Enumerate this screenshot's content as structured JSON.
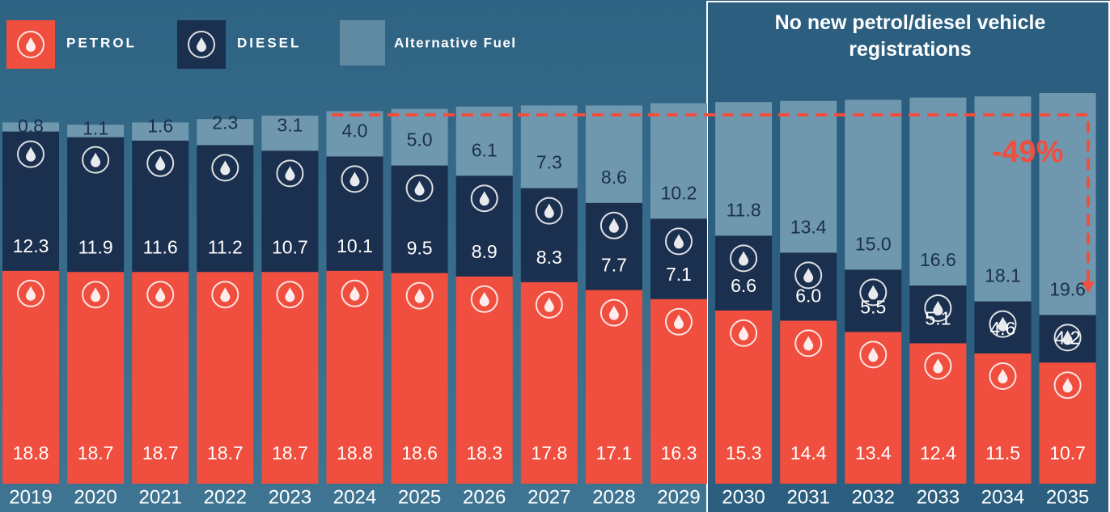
{
  "chart_data": {
    "type": "stacked_bar",
    "categories": [
      "2019",
      "2020",
      "2021",
      "2022",
      "2023",
      "2024",
      "2025",
      "2026",
      "2027",
      "2028",
      "2029",
      "2030",
      "2031",
      "2032",
      "2033",
      "2034",
      "2035"
    ],
    "series": [
      {
        "name": "PETROL",
        "color": "#f04e3e",
        "values": [
          18.8,
          18.7,
          18.7,
          18.7,
          18.7,
          18.8,
          18.6,
          18.3,
          17.8,
          17.1,
          16.3,
          15.3,
          14.4,
          13.4,
          12.4,
          11.5,
          10.7
        ]
      },
      {
        "name": "DIESEL",
        "color": "#1b2f4e",
        "values": [
          12.3,
          11.9,
          11.6,
          11.2,
          10.7,
          10.1,
          9.5,
          8.9,
          8.3,
          7.7,
          7.1,
          6.6,
          6.0,
          5.5,
          5.1,
          4.6,
          4.2
        ],
        "value_labels": [
          "12.3",
          "11.9",
          "11.6",
          "11.2",
          "10.7",
          "10.1",
          "9.5",
          "8.9",
          "8.3",
          "7.7",
          "7.1",
          "6.6",
          "6.0",
          "5.5",
          "5.1",
          "4.6",
          "4.2"
        ]
      },
      {
        "name": "Alternative Fuel",
        "color": "#6f98ae",
        "values": [
          0.8,
          1.1,
          1.6,
          2.3,
          3.1,
          4.0,
          5.0,
          6.1,
          7.3,
          8.6,
          10.2,
          11.8,
          13.4,
          15.0,
          16.6,
          18.1,
          19.6
        ],
        "value_labels": [
          "0.8",
          "1.1",
          "1.6",
          "2.3",
          "3.1",
          "4.0",
          "5.0",
          "6.1",
          "7.3",
          "8.6",
          "10.2",
          "11.8",
          "13.4",
          "15.0",
          "16.6",
          "18.1",
          "19.6"
        ]
      }
    ],
    "annotations": [
      "No new petrol/diesel vehicle registrations",
      "-49%"
    ]
  }
}
